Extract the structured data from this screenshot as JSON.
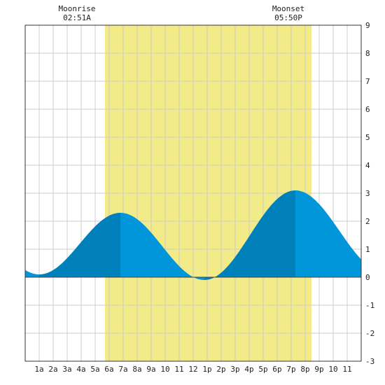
{
  "annotations": {
    "moonrise": {
      "label": "Moonrise",
      "time": "02:51A"
    },
    "moonset": {
      "label": "Moonset",
      "time": "05:50P"
    }
  },
  "colors": {
    "daylight": "#f3eb88",
    "tide_rising": "#0080bb",
    "tide_falling": "#0096d9",
    "grid": "#cccccc",
    "frame": "#333333"
  },
  "chart_data": {
    "type": "area",
    "x_unit": "hour of day",
    "xlim": [
      0,
      24
    ],
    "ylim": [
      -3,
      9
    ],
    "grid": true,
    "x_tick_labels": [
      "1a",
      "2a",
      "3a",
      "4a",
      "5a",
      "6a",
      "7a",
      "8a",
      "9a",
      "10",
      "11",
      "12",
      "1p",
      "2p",
      "3p",
      "4p",
      "5p",
      "6p",
      "7p",
      "8p",
      "9p",
      "10",
      "11"
    ],
    "y_tick_labels": [
      "9",
      "8",
      "7",
      "6",
      "5",
      "4",
      "3",
      "2",
      "1",
      "0",
      "-1",
      "-2",
      "-3"
    ],
    "daylight_span": [
      5.7,
      20.45
    ],
    "extrema": [
      {
        "kind": "low",
        "x": 1.0,
        "y": 0.1
      },
      {
        "kind": "high",
        "x": 6.8,
        "y": 2.3
      },
      {
        "kind": "low",
        "x": 12.8,
        "y": -0.1
      },
      {
        "kind": "high",
        "x": 19.3,
        "y": 3.1
      },
      {
        "kind": "low",
        "x": 25.6,
        "y": 0.2
      }
    ],
    "series": [
      {
        "x": [
          0,
          1,
          2,
          3,
          4,
          5,
          6,
          7,
          8,
          9,
          10,
          11,
          12,
          13,
          14,
          15,
          16,
          17,
          18,
          19,
          20,
          21,
          22,
          23,
          24
        ],
        "y": [
          0.2,
          0.1,
          0.3,
          0.7,
          1.2,
          1.8,
          2.2,
          2.3,
          2.0,
          1.5,
          0.9,
          0.4,
          0.0,
          -0.1,
          0.2,
          0.8,
          1.6,
          2.4,
          2.9,
          3.1,
          3.0,
          2.6,
          2.0,
          1.3,
          0.7
        ]
      }
    ]
  }
}
